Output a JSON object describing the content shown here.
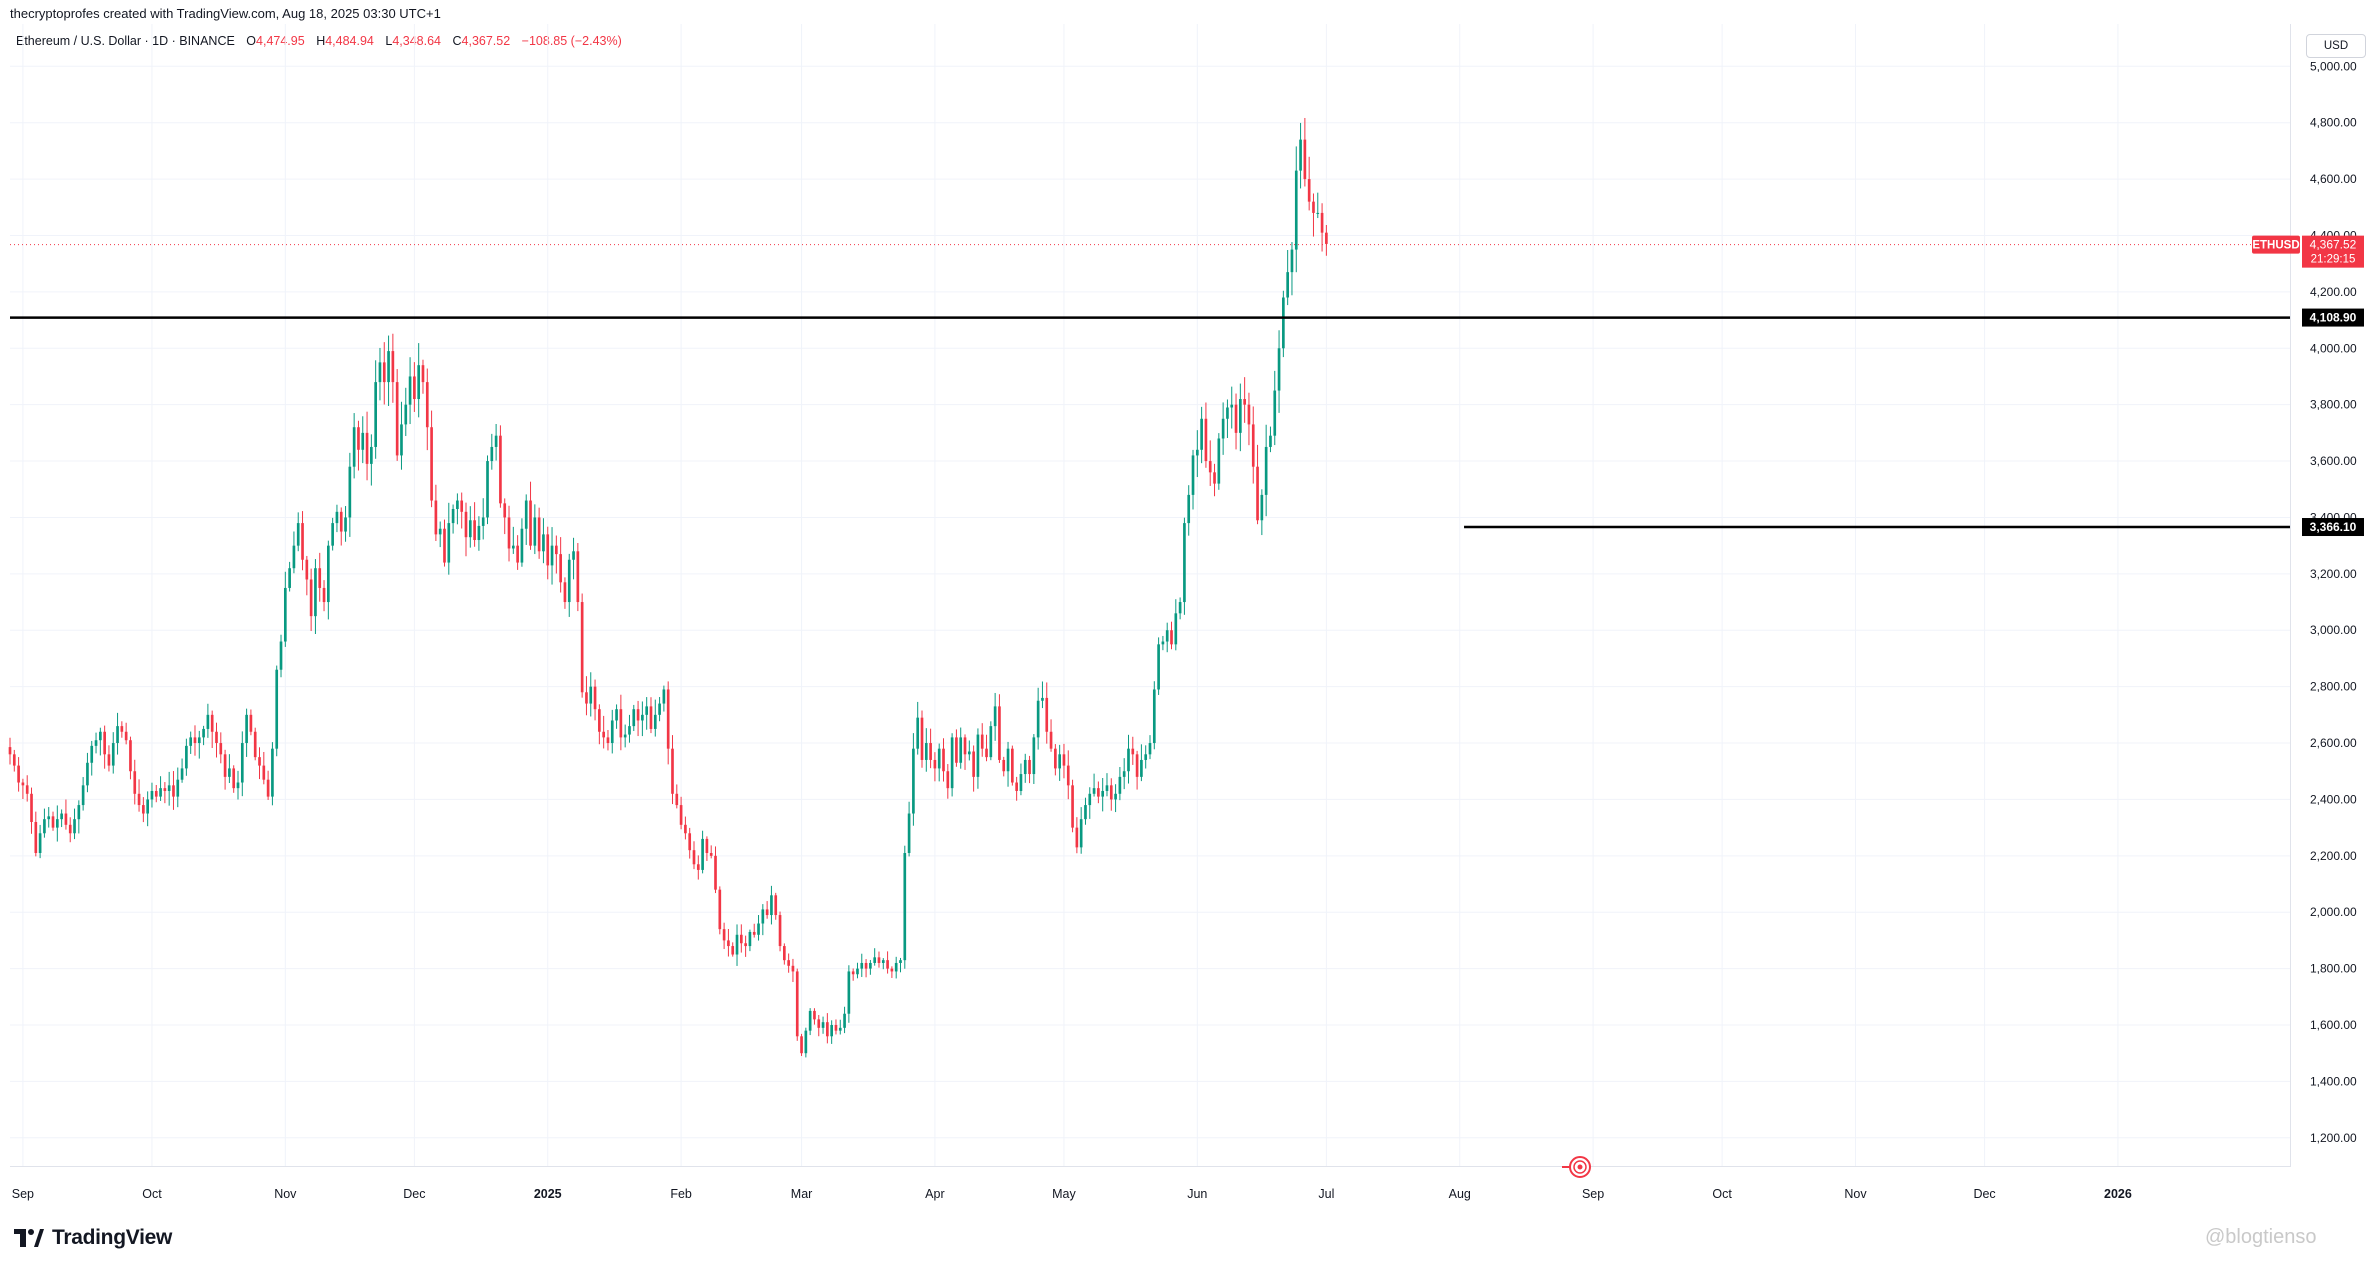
{
  "header": {
    "credit": "thecryptoprofes created with TradingView.com, Aug 18, 2025 03:30 UTC+1",
    "symbol_line": "Ethereum / U.S. Dollar · 1D · BINANCE",
    "open_label": "O",
    "open": "4,474.95",
    "high_label": "H",
    "high": "4,484.94",
    "low_label": "L",
    "low": "4,348.64",
    "close_label": "C",
    "close": "4,367.52",
    "change": "−108.85 (−2.43%)",
    "currency": "USD"
  },
  "footer": {
    "brand": "TradingView",
    "watermark": "@blogtienso"
  },
  "colors": {
    "up": "#089981",
    "down": "#f23645",
    "grid": "#f0f3fa",
    "hline": "#000000"
  },
  "chart_data": {
    "type": "candlestick",
    "ylim": [
      1100,
      5150
    ],
    "xlim": [
      "2024-08-29",
      "2026-02-10"
    ],
    "y_ticks": [
      1200,
      1400,
      1600,
      1800,
      2000,
      2200,
      2400,
      2600,
      2800,
      3000,
      3200,
      3400,
      3600,
      3800,
      4000,
      4200,
      4400,
      4600,
      4800,
      5000
    ],
    "y_tick_labels": [
      "1,200.00",
      "1,400.00",
      "1,600.00",
      "1,800.00",
      "2,000.00",
      "2,200.00",
      "2,400.00",
      "2,600.00",
      "2,800.00",
      "3,000.00",
      "3,200.00",
      "3,400.00",
      "3,600.00",
      "3,800.00",
      "4,000.00",
      "4,200.00",
      "4,400.00",
      "4,600.00",
      "4,800.00",
      "5,000.00"
    ],
    "x_ticks": [
      {
        "date": "2024-09-01",
        "label": "Sep",
        "bold": false
      },
      {
        "date": "2024-10-01",
        "label": "Oct",
        "bold": false
      },
      {
        "date": "2024-11-01",
        "label": "Nov",
        "bold": false
      },
      {
        "date": "2024-12-01",
        "label": "Dec",
        "bold": false
      },
      {
        "date": "2025-01-01",
        "label": "2025",
        "bold": true
      },
      {
        "date": "2025-02-01",
        "label": "Feb",
        "bold": false
      },
      {
        "date": "2025-03-01",
        "label": "Mar",
        "bold": false
      },
      {
        "date": "2025-04-01",
        "label": "Apr",
        "bold": false
      },
      {
        "date": "2025-05-01",
        "label": "May",
        "bold": false
      },
      {
        "date": "2025-06-01",
        "label": "Jun",
        "bold": false
      },
      {
        "date": "2025-07-01",
        "label": "Jul",
        "bold": false
      },
      {
        "date": "2025-08-01",
        "label": "Aug",
        "bold": false
      },
      {
        "date": "2025-09-01",
        "label": "Sep",
        "bold": false
      },
      {
        "date": "2025-10-01",
        "label": "Oct",
        "bold": false
      },
      {
        "date": "2025-11-01",
        "label": "Nov",
        "bold": false
      },
      {
        "date": "2025-12-01",
        "label": "Dec",
        "bold": false
      },
      {
        "date": "2026-01-01",
        "label": "2026",
        "bold": true
      }
    ],
    "start_date": "2024-08-29",
    "closes": [
      2560,
      2520,
      2460,
      2450,
      2420,
      2320,
      2210,
      2280,
      2330,
      2340,
      2300,
      2330,
      2350,
      2310,
      2280,
      2330,
      2380,
      2450,
      2530,
      2590,
      2610,
      2640,
      2560,
      2520,
      2600,
      2660,
      2640,
      2610,
      2500,
      2420,
      2380,
      2350,
      2400,
      2430,
      2410,
      2440,
      2430,
      2450,
      2410,
      2470,
      2510,
      2590,
      2620,
      2600,
      2620,
      2650,
      2700,
      2640,
      2600,
      2560,
      2480,
      2510,
      2440,
      2460,
      2600,
      2700,
      2640,
      2550,
      2520,
      2470,
      2410,
      2580,
      2860,
      2960,
      3150,
      3220,
      3300,
      3380,
      3250,
      3180,
      3050,
      3220,
      3150,
      3100,
      3300,
      3380,
      3420,
      3350,
      3400,
      3580,
      3720,
      3640,
      3700,
      3590,
      3650,
      3880,
      3950,
      3880,
      3990,
      3880,
      3620,
      3730,
      3800,
      3900,
      3820,
      3940,
      3880,
      3720,
      3460,
      3340,
      3360,
      3240,
      3380,
      3430,
      3460,
      3420,
      3330,
      3390,
      3320,
      3370,
      3400,
      3600,
      3650,
      3690,
      3450,
      3400,
      3290,
      3300,
      3240,
      3360,
      3460,
      3300,
      3400,
      3280,
      3340,
      3230,
      3300,
      3270,
      3170,
      3100,
      3250,
      3280,
      3100,
      2780,
      2740,
      2800,
      2720,
      2640,
      2620,
      2600,
      2680,
      2720,
      2620,
      2630,
      2660,
      2720,
      2680,
      2700,
      2730,
      2650,
      2700,
      2740,
      2790,
      2580,
      2420,
      2380,
      2310,
      2280,
      2220,
      2170,
      2150,
      2260,
      2210,
      2200,
      2080,
      1940,
      1900,
      1880,
      1850,
      1920,
      1890,
      1880,
      1930,
      1920,
      1960,
      2010,
      1990,
      2060,
      1990,
      1880,
      1830,
      1810,
      1790,
      1560,
      1500,
      1580,
      1650,
      1620,
      1590,
      1610,
      1560,
      1600,
      1580,
      1590,
      1640,
      1790,
      1780,
      1800,
      1820,
      1800,
      1820,
      1840,
      1820,
      1830,
      1800,
      1790,
      1820,
      1830,
      2210,
      2350,
      2580,
      2690,
      2540,
      2600,
      2540,
      2510,
      2580,
      2500,
      2440,
      2620,
      2530,
      2620,
      2560,
      2570,
      2480,
      2630,
      2580,
      2550,
      2660,
      2730,
      2540,
      2500,
      2580,
      2460,
      2430,
      2490,
      2540,
      2490,
      2620,
      2750,
      2760,
      2640,
      2580,
      2510,
      2560,
      2520,
      2450,
      2300,
      2230,
      2330,
      2380,
      2420,
      2440,
      2410,
      2430,
      2450,
      2400,
      2420,
      2480,
      2500,
      2580,
      2560,
      2480,
      2540,
      2560,
      2600,
      2790,
      2950,
      2960,
      3000,
      2950,
      3060,
      3100,
      3380,
      3480,
      3620,
      3640,
      3750,
      3600,
      3560,
      3520,
      3680,
      3750,
      3790,
      3800,
      3700,
      3820,
      3800,
      3730,
      3580,
      3390,
      3480,
      3650,
      3690,
      3850,
      4000,
      4180,
      4270,
      4350,
      4630,
      4740,
      4600,
      4520,
      4480,
      4480,
      4410,
      4370
    ],
    "hlines": [
      {
        "value": 4108.9,
        "label": "4,108.90",
        "from": "left"
      },
      {
        "value": 3366.1,
        "label": "3,366.10",
        "from": "2025-08-02"
      }
    ],
    "last_price": {
      "symbol": "ETHUSD",
      "value": 4367.52,
      "label": "4,367.52",
      "countdown": "21:29:15"
    }
  }
}
